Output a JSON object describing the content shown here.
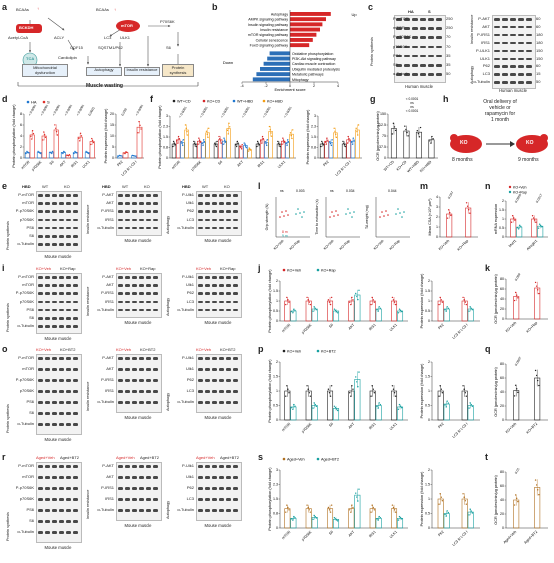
{
  "panels": [
    "a",
    "b",
    "c",
    "d",
    "e",
    "f",
    "g",
    "h",
    "i",
    "j",
    "k",
    "l",
    "m",
    "n",
    "o",
    "p",
    "q",
    "r",
    "s",
    "t"
  ],
  "colors": {
    "ha": "#1f77d0",
    "s": "#e0302a",
    "red": "#d62728",
    "blue": "#2c6fb7",
    "teal": "#17a0a0",
    "orange": "#f39c12",
    "brown": "#b07020",
    "dark": "#222222",
    "lightblue": "#cfe3f6",
    "lightred": "#f8d2d0",
    "lightgray": "#e8e8e8"
  },
  "a": {
    "nodes": {
      "bcaas": "BCAAs",
      "bckdh": "BCKDH",
      "acetyl": "Acetyl-CoA",
      "tca": "TCA",
      "aclyp": "ACLY",
      "gdf15": "GDF15",
      "cardiolipin": "Cardiolipin",
      "lc3": "LC3",
      "ulk1": "ULK1",
      "sqstm": "SQSTM1/P62",
      "mtor": "mTOR",
      "p70s6k": "P70S6K",
      "s6": "S6",
      "bcaas2": "BCAAs"
    },
    "boxes": {
      "mito": "Mitochondrial dysfunction",
      "autophagy": "Autophagy",
      "insulin": "Insulin resistance",
      "protein": "Protein synthesis"
    },
    "footer": "Muscle wasting"
  },
  "b": {
    "up_label": "Up",
    "down_label": "Down",
    "xlabel": "Enrichment score",
    "xsub": "KO vs. WT",
    "terms_up": [
      "Autophagy",
      "AMPK signaling pathway",
      "Insulin signaling pathway",
      "Insulin resistance",
      "mTOR signaling pathway",
      "Cellular senescence",
      "FoxO signaling pathway"
    ],
    "terms_down": [
      "Oxidative phosphorylation",
      "PI3K-Akt signaling pathway",
      "Cardiac muscle contraction",
      "Ubiquitin mediated proteolysis",
      "Metabolic pathways",
      "Mitophagy"
    ],
    "ticks": [
      "-4",
      "-2",
      "0",
      "2",
      "4"
    ]
  },
  "c": {
    "head_ha": "HA",
    "head_s": "S",
    "left_rows": [
      "P-mTOR",
      "mTOR",
      "P-p70S6K",
      "p70S6K",
      "PS6",
      "S6",
      "α-Tubulin"
    ],
    "left_kd": [
      "250",
      "250",
      "70",
      "70",
      "35",
      "35",
      "50"
    ],
    "right_rows": [
      "P-AKT",
      "AKT",
      "P-IRS1",
      "IRS1",
      "P-ULK1",
      "ULK1",
      "P62",
      "LC3",
      "α-Tubulin"
    ],
    "right_kd": [
      "60",
      "60",
      "180",
      "180",
      "150",
      "150",
      "60",
      "15",
      "50"
    ],
    "side_left": "Protein synthesis",
    "side_r1": "Insulin resistance",
    "side_r2": "Autophagy",
    "caption_left": "Human muscle",
    "caption_right": "Human muscle"
  },
  "d": {
    "legend_ha": "HA",
    "legend_s": "S",
    "ylabel1": "Protein phosphorylation (fold change)",
    "ylabel2": "Protein expression (fold change)",
    "cats1": [
      "mTOR",
      "p70S6K",
      "S6",
      "AKT",
      "IRS1",
      "ULK1"
    ],
    "pvals1": [
      "< 0.0001",
      "< 0.0001",
      "< 0.0001",
      "< 0.0001",
      "< 0.0001",
      "0.0001"
    ],
    "cats2": [
      "P62",
      "LC3 II/ LC3 I"
    ],
    "pvals2": [
      "0.039",
      "< 0.0001"
    ]
  },
  "e": {
    "hbd": "HBD",
    "wt": "WT",
    "ko": "KO",
    "minus": "-",
    "plus": "+",
    "rows1": [
      "P-mTOR",
      "mTOR",
      "P-p70S6K",
      "p70S6K",
      "PS6",
      "S6",
      "α-Tubulin"
    ],
    "rows2": [
      "P-AKT",
      "AKT",
      "P-IRS1",
      "IRS1",
      "α-Tubulin"
    ],
    "rows3": [
      "P-Ulk1",
      "Ulk1",
      "P62",
      "LC3",
      "α-Tubulin"
    ],
    "side1": "Protein synthesis",
    "side2": "Insulin resistance",
    "side3": "Autophagy",
    "caption": "Mouse muscle"
  },
  "f": {
    "legend": [
      "WT+CD",
      "KO+CD",
      "WT+HBD",
      "KO+HBD"
    ],
    "ylabel1": "Protein phosphorylation (fold change)",
    "ylabel2": "Protein expression (fold change)",
    "cats1": [
      "mTOR",
      "p70S6K",
      "S6",
      "AKT",
      "IRS1",
      "ULK1"
    ],
    "cats2": [
      "P62",
      "LC3 II/ LC3 I"
    ],
    "pvals": [
      "< 0.0001",
      "< 0.0001",
      "< 0.0001",
      "< 0.0001",
      "< 0.0001",
      "< 0.0001"
    ]
  },
  "g": {
    "ylabel": "OCR (pmoles/min/μg protein)",
    "cats": [
      "WT+CD",
      "KO+CD",
      "WT+HBD",
      "KO+HBD"
    ],
    "p1": "< 0.0001",
    "p2": "ns",
    "p3": "ns",
    "p4": "< 0.0001"
  },
  "h": {
    "text1": "Oral delivery of",
    "text2": "vehicle or",
    "text3": "rapamycin for",
    "text4": "1 month",
    "ko": "KO",
    "age1": "8 months",
    "age2": "9 months"
  },
  "i": {
    "head1": "KO+Veh",
    "head2": "KO+Rap",
    "rows1": [
      "P-mTOR",
      "mTOR",
      "P-p70S6K",
      "p70S6K",
      "PS6",
      "S6",
      "α-Tubulin"
    ],
    "rows2": [
      "P-AKT",
      "AKT",
      "P-IRS1",
      "IRS1",
      "α-Tubulin"
    ],
    "rows3": [
      "P-Ulk1",
      "Ulk1",
      "P62",
      "LC3",
      "α-Tubulin"
    ],
    "side1": "Protein synthesis",
    "side2": "Insulin resistance",
    "side3": "Autophagy",
    "caption": "Mouse muscle"
  },
  "j": {
    "legend": [
      "KO+Veh",
      "KO+Rap"
    ],
    "ylabel1": "Protein phosphorylation (fold change)",
    "ylabel2": "Protein expression (fold change)",
    "cats1": [
      "mTOR",
      "p70S6K",
      "S6",
      "AKT",
      "IRS1",
      "ULK1"
    ],
    "cats2": [
      "P62",
      "LC3 II/ LC3 I"
    ]
  },
  "k": {
    "ylabel": "OCR (pmoles/min/μg protein)",
    "cats": [
      "KO+Veh",
      "KO+Rap"
    ],
    "p": "0.009"
  },
  "l": {
    "ylabel1": "Grip strength (N)",
    "ylabel2": "Time to exhaustion (s)",
    "ylabel3": "TA weight (mg)",
    "legend1": "8 m",
    "legend2": "9 m",
    "cats": [
      "KO+Veh",
      "KO+Rap"
    ],
    "pa": "ns",
    "pb": "0.003",
    "pc": "ns",
    "pd": "0.034",
    "pe": "0.044"
  },
  "m": {
    "ylabel": "Mean CSA (×10³ μm²)",
    "cats": [
      "KO+Veh",
      "KO+Rap"
    ],
    "p": "0.047"
  },
  "n": {
    "legend": [
      "KO+Veh",
      "KO+Rap"
    ],
    "ylabel": "mRNA expression",
    "cats": [
      "Murf1",
      "Atrogin1"
    ],
    "p1": "0.0055",
    "p2": "0.0217"
  },
  "o": {
    "head1": "KO+Veh",
    "head2": "KO+BT2",
    "rows1": [
      "P-mTOR",
      "mTOR",
      "P-p70S6K",
      "p70S6K",
      "PS6",
      "S6",
      "α-Tubulin"
    ],
    "rows2": [
      "P-AKT",
      "AKT",
      "P-IRS1",
      "IRS1",
      "α-Tubulin"
    ],
    "rows3": [
      "P-Ulk1",
      "Ulk1",
      "P62",
      "LC3",
      "α-Tubulin"
    ],
    "side1": "Protein synthesis",
    "side2": "Insulin resistance",
    "side3": "Autophagy",
    "caption": "Mouse muscle"
  },
  "p": {
    "legend": [
      "KO+Veh",
      "KO+BT2"
    ],
    "ylabel1": "Protein phosphorylation (fold change)",
    "ylabel2": "Protein expression (fold change)",
    "cats1": [
      "mTOR",
      "p70S6K",
      "S6",
      "AKT",
      "IRS1",
      "ULK1"
    ],
    "cats2": [
      "P62",
      "LC3 II/ LC3 I"
    ]
  },
  "q": {
    "ylabel": "OCR (pmoles/min/μg protein)",
    "cats": [
      "KO+Veh",
      "KO+BT2"
    ],
    "p": "0.0007"
  },
  "r": {
    "head1": "Aged+Veh",
    "head2": "Aged+BT2",
    "rows1": [
      "P-mTOR",
      "mTOR",
      "P-p70S6K",
      "p70S6K",
      "PS6",
      "S6",
      "α-Tubulin"
    ],
    "rows2": [
      "P-AKT",
      "AKT",
      "P-IRS1",
      "IRS1",
      "α-Tubulin"
    ],
    "rows3": [
      "P-Ulk1",
      "Ulk1",
      "P62",
      "LC3",
      "α-Tubulin"
    ],
    "side1": "Protein synthesis",
    "side2": "Insulin resistance",
    "side3": "Autophagy",
    "caption": "Mouse muscle"
  },
  "s": {
    "legend": [
      "Aged+Veh",
      "Aged+BT2"
    ],
    "ylabel1": "Protein phosphorylation (fold change)",
    "ylabel2": "Protein expression (fold change)",
    "cats1": [
      "mTOR",
      "p70S6K",
      "S6",
      "AKT",
      "IRS1",
      "ULK1"
    ],
    "cats2": [
      "P62",
      "LC3 II/ LC3 I"
    ],
    "p62": "0.0002",
    "lc3": "0.0002"
  },
  "t": {
    "ylabel": "OCR (pmoles/min/μg protein)",
    "cats": [
      "Aged+Veh",
      "Aged+BT2"
    ],
    "p": "0.01"
  },
  "chart_data": [
    {
      "panel": "b",
      "type": "bar",
      "orientation": "horizontal",
      "xlabel": "Enrichment score",
      "xlim": [
        -4,
        4
      ],
      "categories": [
        "Autophagy",
        "AMPK signaling pathway",
        "Insulin signaling pathway",
        "Insulin resistance",
        "mTOR signaling pathway",
        "Cellular senescence",
        "FoxO signaling pathway",
        "Oxidative phosphorylation",
        "PI3K-Akt signaling pathway",
        "Cardiac muscle contraction",
        "Ubiquitin mediated proteolysis",
        "Metabolic pathways",
        "Mitophagy"
      ],
      "values": [
        3.4,
        3.0,
        2.7,
        2.5,
        2.2,
        1.9,
        1.6,
        -1.7,
        -1.9,
        -2.2,
        -2.5,
        -2.8,
        -3.1
      ]
    },
    {
      "panel": "d-left",
      "type": "bar",
      "categories": [
        "mTOR",
        "p70S6K",
        "S6",
        "AKT",
        "IRS1",
        "ULK1"
      ],
      "ylim": [
        0,
        8
      ],
      "series": [
        {
          "name": "HA",
          "values": [
            1,
            1,
            1,
            1,
            1,
            1
          ]
        },
        {
          "name": "S",
          "values": [
            4.2,
            4.0,
            5.1,
            0.5,
            3.8,
            3.0
          ]
        }
      ]
    },
    {
      "panel": "d-right",
      "type": "bar",
      "categories": [
        "P62",
        "LC3 II/ LC3 I"
      ],
      "ylim": [
        0,
        20
      ],
      "series": [
        {
          "name": "HA",
          "values": [
            1,
            1
          ]
        },
        {
          "name": "S",
          "values": [
            2.4,
            14
          ]
        }
      ]
    },
    {
      "panel": "f-left",
      "type": "bar",
      "categories": [
        "mTOR",
        "p70S6K",
        "S6",
        "AKT",
        "IRS1",
        "ULK1"
      ],
      "ylim": [
        0,
        3
      ],
      "series": [
        {
          "name": "WT+CD",
          "values": [
            1,
            1,
            1,
            1,
            1,
            1
          ]
        },
        {
          "name": "KO+CD",
          "values": [
            1.3,
            1.2,
            1.3,
            0.8,
            1.3,
            1.2
          ]
        },
        {
          "name": "WT+HBD",
          "values": [
            1.1,
            1.1,
            1.2,
            0.9,
            1.1,
            1.1
          ]
        },
        {
          "name": "KO+HBD",
          "values": [
            2.0,
            1.8,
            2.1,
            0.6,
            1.9,
            1.7
          ]
        }
      ]
    },
    {
      "panel": "f-right",
      "type": "bar",
      "categories": [
        "P62",
        "LC3 II/ LC3 I"
      ],
      "ylim": [
        0,
        3
      ],
      "series": [
        {
          "name": "WT+CD",
          "values": [
            1,
            1
          ]
        },
        {
          "name": "KO+CD",
          "values": [
            1.2,
            1.3
          ]
        },
        {
          "name": "WT+HBD",
          "values": [
            1.1,
            1.2
          ]
        },
        {
          "name": "KO+HBD",
          "values": [
            1.8,
            2.0
          ]
        }
      ]
    },
    {
      "panel": "g",
      "type": "bar",
      "categories": [
        "WT+CD",
        "KO+CD",
        "WT+HBD",
        "KO+HBD"
      ],
      "ylim": [
        0,
        150
      ],
      "values": [
        100,
        92,
        88,
        62
      ]
    },
    {
      "panel": "j-left",
      "type": "bar",
      "categories": [
        "mTOR",
        "p70S6K",
        "S6",
        "AKT",
        "IRS1",
        "ULK1"
      ],
      "ylim": [
        0,
        2
      ],
      "series": [
        {
          "name": "KO+Veh",
          "values": [
            1,
            1,
            1,
            1,
            1,
            1
          ]
        },
        {
          "name": "KO+Rap",
          "values": [
            0.5,
            0.6,
            0.5,
            1.3,
            0.6,
            0.5
          ]
        }
      ]
    },
    {
      "panel": "j-right",
      "type": "bar",
      "categories": [
        "P62",
        "LC3 II/ LC3 I"
      ],
      "ylim": [
        0,
        2
      ],
      "series": [
        {
          "name": "KO+Veh",
          "values": [
            1,
            1
          ]
        },
        {
          "name": "KO+Rap",
          "values": [
            0.6,
            0.6
          ]
        }
      ]
    },
    {
      "panel": "k",
      "type": "bar",
      "categories": [
        "KO+Veh",
        "KO+Rap"
      ],
      "ylim": [
        0,
        80
      ],
      "values": [
        45,
        62
      ]
    },
    {
      "panel": "m",
      "type": "bar",
      "categories": [
        "KO+Veh",
        "KO+Rap"
      ],
      "ylim": [
        0,
        4
      ],
      "values": [
        2.3,
        2.9
      ]
    },
    {
      "panel": "n",
      "type": "bar",
      "categories": [
        "Murf1",
        "Atrogin1"
      ],
      "ylim": [
        0,
        2
      ],
      "series": [
        {
          "name": "KO+Veh",
          "values": [
            1,
            1
          ]
        },
        {
          "name": "KO+Rap",
          "values": [
            0.55,
            0.6
          ]
        }
      ]
    },
    {
      "panel": "p-left",
      "type": "bar",
      "categories": [
        "mTOR",
        "p70S6K",
        "S6",
        "AKT",
        "IRS1",
        "ULK1"
      ],
      "ylim": [
        0,
        2
      ],
      "series": [
        {
          "name": "KO+Veh",
          "values": [
            1,
            1,
            1,
            1,
            1,
            1
          ]
        },
        {
          "name": "KO+BT2",
          "values": [
            0.45,
            0.5,
            0.4,
            1.4,
            0.5,
            0.45
          ]
        }
      ]
    },
    {
      "panel": "p-right",
      "type": "bar",
      "categories": [
        "P62",
        "LC3 II/ LC3 I"
      ],
      "ylim": [
        0,
        2
      ],
      "series": [
        {
          "name": "KO+Veh",
          "values": [
            1,
            1
          ]
        },
        {
          "name": "KO+BT2",
          "values": [
            0.55,
            0.5
          ]
        }
      ]
    },
    {
      "panel": "q",
      "type": "bar",
      "categories": [
        "KO+Veh",
        "KO+BT2"
      ],
      "ylim": [
        0,
        80
      ],
      "values": [
        42,
        60
      ]
    },
    {
      "panel": "s-left",
      "type": "bar",
      "categories": [
        "mTOR",
        "p70S6K",
        "S6",
        "AKT",
        "IRS1",
        "ULK1"
      ],
      "ylim": [
        0,
        3
      ],
      "series": [
        {
          "name": "Aged+Veh",
          "values": [
            1,
            1,
            1,
            1,
            1,
            1
          ]
        },
        {
          "name": "Aged+BT2",
          "values": [
            0.5,
            0.55,
            0.45,
            1.7,
            0.5,
            0.5
          ]
        }
      ]
    },
    {
      "panel": "s-right",
      "type": "bar",
      "categories": [
        "P62",
        "LC3 II/ LC3 I"
      ],
      "ylim": [
        0,
        2
      ],
      "series": [
        {
          "name": "Aged+Veh",
          "values": [
            1,
            1
          ]
        },
        {
          "name": "Aged+BT2",
          "values": [
            0.5,
            0.55
          ]
        }
      ]
    },
    {
      "panel": "t",
      "type": "bar",
      "categories": [
        "Aged+Veh",
        "Aged+BT2"
      ],
      "ylim": [
        0,
        80
      ],
      "values": [
        40,
        58
      ]
    }
  ]
}
